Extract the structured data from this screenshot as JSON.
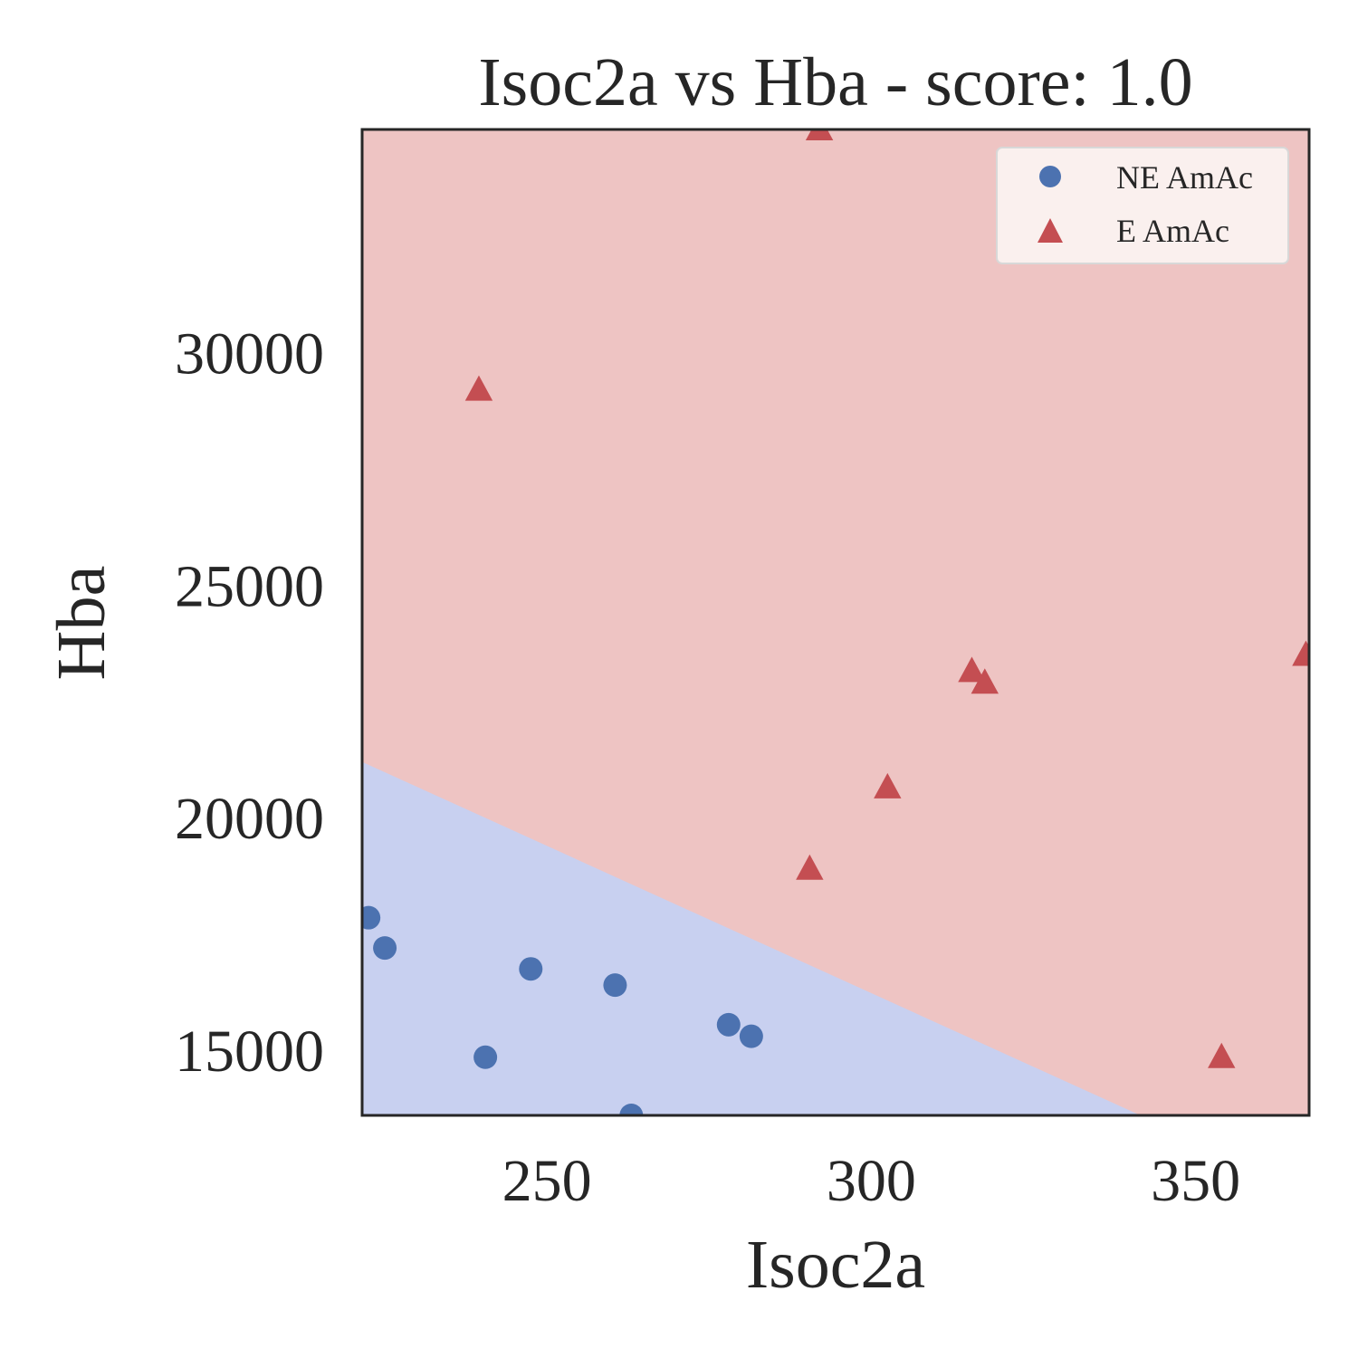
{
  "chart_data": {
    "type": "scatter",
    "title": "Isoc2a vs Hba - score: 1.0",
    "xlabel": "Isoc2a",
    "ylabel": "Hba",
    "xlim": [
      221.5,
      367.5
    ],
    "ylim": [
      13600,
      34800
    ],
    "xticks": [
      250,
      300,
      350
    ],
    "yticks": [
      15000,
      20000,
      25000,
      30000
    ],
    "xtick_labels": [
      "250",
      "300",
      "350"
    ],
    "ytick_labels": [
      "15000",
      "20000",
      "25000",
      "30000"
    ],
    "grid": false,
    "legend_position": "top-right",
    "decision_boundary": {
      "line": [
        [
          221.5,
          21200
        ],
        [
          341.5,
          13600
        ]
      ],
      "colors": {
        "NE AmAc": "#c8d0f0",
        "E AmAc": "#eec4c3"
      }
    },
    "series": [
      {
        "name": "NE AmAc",
        "marker": "circle",
        "color": "#4c72b0",
        "points": [
          [
            222.5,
            17850
          ],
          [
            225,
            17200
          ],
          [
            240.5,
            14850
          ],
          [
            247.5,
            16750
          ],
          [
            260.5,
            16400
          ],
          [
            263,
            13600
          ],
          [
            278,
            15550
          ],
          [
            281.5,
            15300
          ]
        ]
      },
      {
        "name": "E AmAc",
        "marker": "triangle",
        "color": "#c44e52",
        "points": [
          [
            239.5,
            29200
          ],
          [
            292,
            34800
          ],
          [
            290.5,
            18900
          ],
          [
            302.5,
            20650
          ],
          [
            315.5,
            23150
          ],
          [
            317.5,
            22900
          ],
          [
            354,
            14850
          ],
          [
            367,
            23500
          ]
        ]
      }
    ]
  }
}
